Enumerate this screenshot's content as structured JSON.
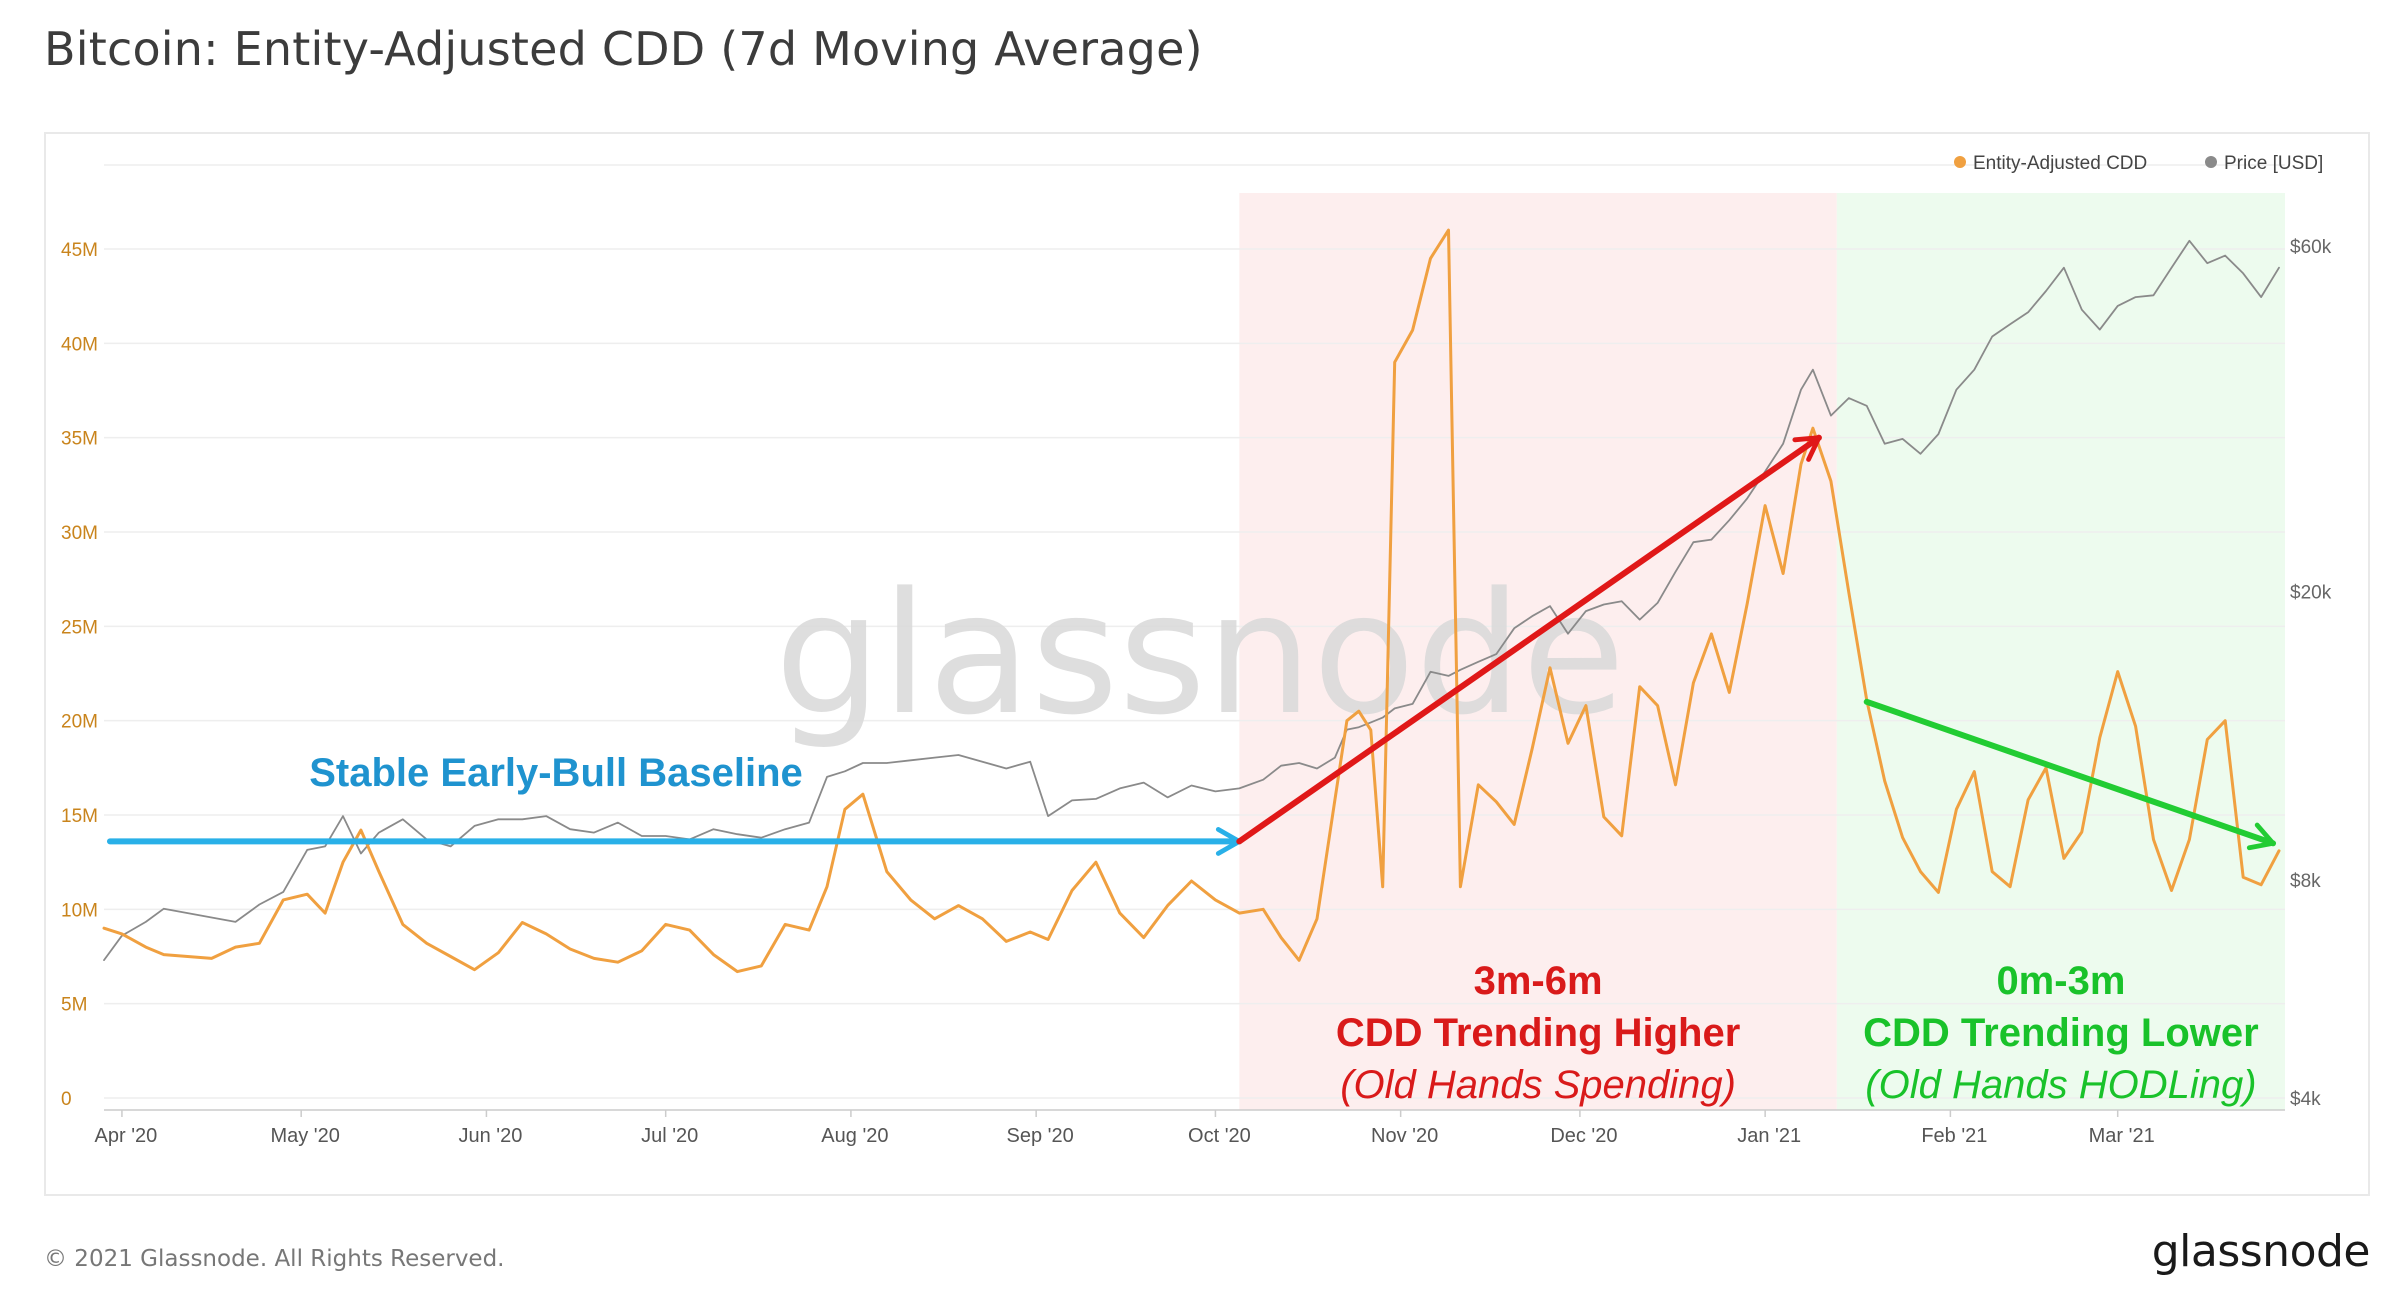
{
  "title": "Bitcoin: Entity-Adjusted CDD (7d Moving Average)",
  "footer": {
    "copyright": "© 2021 Glassnode. All Rights Reserved.",
    "brand": "glassnode"
  },
  "watermark": "glassnode",
  "colors": {
    "cdd": "#f0a040",
    "price": "#8a8a8a",
    "red_band": "#fdeeee",
    "green_band": "#edfbee",
    "blue_arrow": "#29b0e8",
    "red_arrow": "#e01818",
    "green_arrow": "#22cc33",
    "left_axis_text": "#c9841c",
    "right_axis_text": "#666666"
  },
  "chart_data": {
    "type": "line",
    "x_tick_labels": [
      "Apr '20",
      "May '20",
      "Jun '20",
      "Jul '20",
      "Aug '20",
      "Sep '20",
      "Oct '20",
      "Nov '20",
      "Dec '20",
      "Jan '21",
      "Feb '21",
      "Mar '21"
    ],
    "left_axis": {
      "ticks": [
        "0",
        "5M",
        "10M",
        "15M",
        "20M",
        "25M",
        "30M",
        "35M",
        "40M",
        "45M"
      ],
      "range": [
        0,
        45000000
      ]
    },
    "right_axis": {
      "ticks": [
        "$4k",
        "$8k",
        "$20k",
        "$60k"
      ],
      "scale": "log"
    },
    "legend": {
      "placement": "top-right",
      "items": [
        "Entity-Adjusted CDD",
        "Price [USD]"
      ]
    },
    "series": [
      {
        "name": "Entity-Adjusted CDD",
        "axis": "left",
        "x": [
          "2020-03-29",
          "2020-04-01",
          "2020-04-05",
          "2020-04-08",
          "2020-04-12",
          "2020-04-16",
          "2020-04-20",
          "2020-04-24",
          "2020-04-28",
          "2020-05-02",
          "2020-05-05",
          "2020-05-08",
          "2020-05-11",
          "2020-05-14",
          "2020-05-18",
          "2020-05-22",
          "2020-05-26",
          "2020-05-30",
          "2020-06-03",
          "2020-06-07",
          "2020-06-11",
          "2020-06-15",
          "2020-06-19",
          "2020-06-23",
          "2020-06-27",
          "2020-07-01",
          "2020-07-05",
          "2020-07-09",
          "2020-07-13",
          "2020-07-17",
          "2020-07-21",
          "2020-07-25",
          "2020-07-28",
          "2020-07-31",
          "2020-08-03",
          "2020-08-07",
          "2020-08-11",
          "2020-08-15",
          "2020-08-19",
          "2020-08-23",
          "2020-08-27",
          "2020-08-31",
          "2020-09-03",
          "2020-09-07",
          "2020-09-11",
          "2020-09-15",
          "2020-09-19",
          "2020-09-23",
          "2020-09-27",
          "2020-10-01",
          "2020-10-05",
          "2020-10-09",
          "2020-10-12",
          "2020-10-15",
          "2020-10-18",
          "2020-10-21",
          "2020-10-23",
          "2020-10-25",
          "2020-10-27",
          "2020-10-29",
          "2020-10-31",
          "2020-11-03",
          "2020-11-06",
          "2020-11-09",
          "2020-11-11",
          "2020-11-14",
          "2020-11-17",
          "2020-11-20",
          "2020-11-23",
          "2020-11-26",
          "2020-11-29",
          "2020-12-02",
          "2020-12-05",
          "2020-12-08",
          "2020-12-11",
          "2020-12-14",
          "2020-12-17",
          "2020-12-20",
          "2020-12-23",
          "2020-12-26",
          "2020-12-29",
          "2021-01-01",
          "2021-01-04",
          "2021-01-07",
          "2021-01-09",
          "2021-01-12",
          "2021-01-15",
          "2021-01-18",
          "2021-01-21",
          "2021-01-24",
          "2021-01-27",
          "2021-01-30",
          "2021-02-02",
          "2021-02-05",
          "2021-02-08",
          "2021-02-11",
          "2021-02-14",
          "2021-02-17",
          "2021-02-20",
          "2021-02-23",
          "2021-02-26",
          "2021-03-01",
          "2021-03-04",
          "2021-03-07",
          "2021-03-10",
          "2021-03-13",
          "2021-03-16",
          "2021-03-19",
          "2021-03-22",
          "2021-03-25",
          "2021-03-28"
        ],
        "values": [
          9000000,
          8700000,
          8000000,
          7600000,
          7500000,
          7400000,
          8000000,
          8200000,
          10500000,
          10800000,
          9800000,
          12500000,
          14200000,
          12000000,
          9200000,
          8200000,
          7500000,
          6800000,
          7700000,
          9300000,
          8700000,
          7900000,
          7400000,
          7200000,
          7800000,
          9200000,
          8900000,
          7600000,
          6700000,
          7000000,
          9200000,
          8900000,
          11200000,
          15300000,
          16100000,
          12000000,
          10500000,
          9500000,
          10200000,
          9500000,
          8300000,
          8800000,
          8400000,
          11000000,
          12500000,
          9800000,
          8500000,
          10200000,
          11500000,
          10500000,
          9800000,
          10000000,
          8500000,
          7300000,
          9500000,
          15800000,
          20000000,
          20500000,
          19500000,
          11200000,
          39000000,
          40700000,
          44500000,
          46000000,
          11200000,
          16600000,
          15700000,
          14500000,
          18500000,
          22800000,
          18800000,
          20800000,
          14900000,
          13900000,
          21800000,
          20800000,
          16600000,
          22000000,
          24600000,
          21500000,
          26200000,
          31400000,
          27800000,
          33600000,
          35500000,
          32700000,
          26800000,
          21100000,
          16800000,
          13800000,
          12000000,
          10900000,
          15300000,
          17300000,
          12000000,
          11200000,
          15800000,
          17500000,
          12700000,
          14100000,
          19100000,
          22600000,
          19700000,
          13700000,
          11000000,
          13700000,
          19000000,
          20000000,
          11700000,
          11300000,
          13100000
        ]
      },
      {
        "name": "Price [USD]",
        "axis": "right",
        "x": [
          "2020-03-29",
          "2020-04-01",
          "2020-04-05",
          "2020-04-08",
          "2020-04-12",
          "2020-04-16",
          "2020-04-20",
          "2020-04-24",
          "2020-04-28",
          "2020-05-02",
          "2020-05-05",
          "2020-05-08",
          "2020-05-11",
          "2020-05-14",
          "2020-05-18",
          "2020-05-22",
          "2020-05-26",
          "2020-05-30",
          "2020-06-03",
          "2020-06-07",
          "2020-06-11",
          "2020-06-15",
          "2020-06-19",
          "2020-06-23",
          "2020-06-27",
          "2020-07-01",
          "2020-07-05",
          "2020-07-09",
          "2020-07-13",
          "2020-07-17",
          "2020-07-21",
          "2020-07-25",
          "2020-07-28",
          "2020-07-31",
          "2020-08-03",
          "2020-08-07",
          "2020-08-11",
          "2020-08-15",
          "2020-08-19",
          "2020-08-23",
          "2020-08-27",
          "2020-08-31",
          "2020-09-03",
          "2020-09-07",
          "2020-09-11",
          "2020-09-15",
          "2020-09-19",
          "2020-09-23",
          "2020-09-27",
          "2020-10-01",
          "2020-10-05",
          "2020-10-09",
          "2020-10-12",
          "2020-10-15",
          "2020-10-18",
          "2020-10-21",
          "2020-10-23",
          "2020-10-25",
          "2020-10-27",
          "2020-10-29",
          "2020-10-31",
          "2020-11-03",
          "2020-11-06",
          "2020-11-09",
          "2020-11-11",
          "2020-11-14",
          "2020-11-17",
          "2020-11-20",
          "2020-11-23",
          "2020-11-26",
          "2020-11-29",
          "2020-12-02",
          "2020-12-05",
          "2020-12-08",
          "2020-12-11",
          "2020-12-14",
          "2020-12-17",
          "2020-12-20",
          "2020-12-23",
          "2020-12-26",
          "2020-12-29",
          "2021-01-01",
          "2021-01-04",
          "2021-01-07",
          "2021-01-09",
          "2021-01-12",
          "2021-01-15",
          "2021-01-18",
          "2021-01-21",
          "2021-01-24",
          "2021-01-27",
          "2021-01-30",
          "2021-02-02",
          "2021-02-05",
          "2021-02-08",
          "2021-02-11",
          "2021-02-14",
          "2021-02-17",
          "2021-02-20",
          "2021-02-23",
          "2021-02-26",
          "2021-03-01",
          "2021-03-04",
          "2021-03-07",
          "2021-03-10",
          "2021-03-13",
          "2021-03-16",
          "2021-03-19",
          "2021-03-22",
          "2021-03-25",
          "2021-03-28"
        ],
        "values": [
          6200,
          6700,
          7000,
          7300,
          7200,
          7100,
          7000,
          7400,
          7700,
          8800,
          8900,
          9800,
          8700,
          9300,
          9700,
          9100,
          8900,
          9500,
          9700,
          9700,
          9800,
          9400,
          9300,
          9600,
          9200,
          9200,
          9100,
          9400,
          9250,
          9150,
          9400,
          9600,
          11100,
          11300,
          11600,
          11600,
          11700,
          11800,
          11900,
          11650,
          11400,
          11650,
          9800,
          10300,
          10350,
          10700,
          10900,
          10400,
          10800,
          10600,
          10700,
          11000,
          11500,
          11600,
          11400,
          11800,
          12900,
          13000,
          13200,
          13400,
          13800,
          14000,
          15500,
          15300,
          15600,
          16000,
          16400,
          17800,
          18500,
          19100,
          17500,
          18800,
          19200,
          19400,
          18300,
          19300,
          21300,
          23400,
          23600,
          25100,
          26900,
          29300,
          32000,
          38000,
          40500,
          35000,
          37000,
          36100,
          32000,
          32500,
          31000,
          33000,
          38000,
          40500,
          45000,
          46800,
          48600,
          52000,
          56000,
          49000,
          46000,
          49600,
          51000,
          51300,
          56000,
          61000,
          56800,
          58200,
          55000,
          51000,
          56000
        ]
      }
    ],
    "annotations": [
      {
        "type": "arrow",
        "label": "Stable Early-Bull Baseline",
        "from": [
          "2020-03-30",
          13600000
        ],
        "to": [
          "2020-10-05",
          13600000
        ],
        "color": "blue"
      },
      {
        "type": "arrow",
        "from": [
          "2020-10-05",
          13600000
        ],
        "to": [
          "2021-01-10",
          35000000
        ],
        "color": "red"
      },
      {
        "type": "arrow",
        "from": [
          "2021-01-18",
          21000000
        ],
        "to": [
          "2021-03-27",
          13500000
        ],
        "color": "green"
      },
      {
        "type": "band",
        "from": "2020-10-05",
        "to": "2021-01-13",
        "color": "red",
        "lines": [
          "3m-6m",
          "CDD Trending Higher",
          "(Old Hands Spending)"
        ]
      },
      {
        "type": "band",
        "from": "2021-01-13",
        "to": "2021-03-29",
        "color": "green",
        "lines": [
          "0m-3m",
          "CDD Trending Lower",
          "(Old Hands HODLing)"
        ]
      }
    ]
  }
}
